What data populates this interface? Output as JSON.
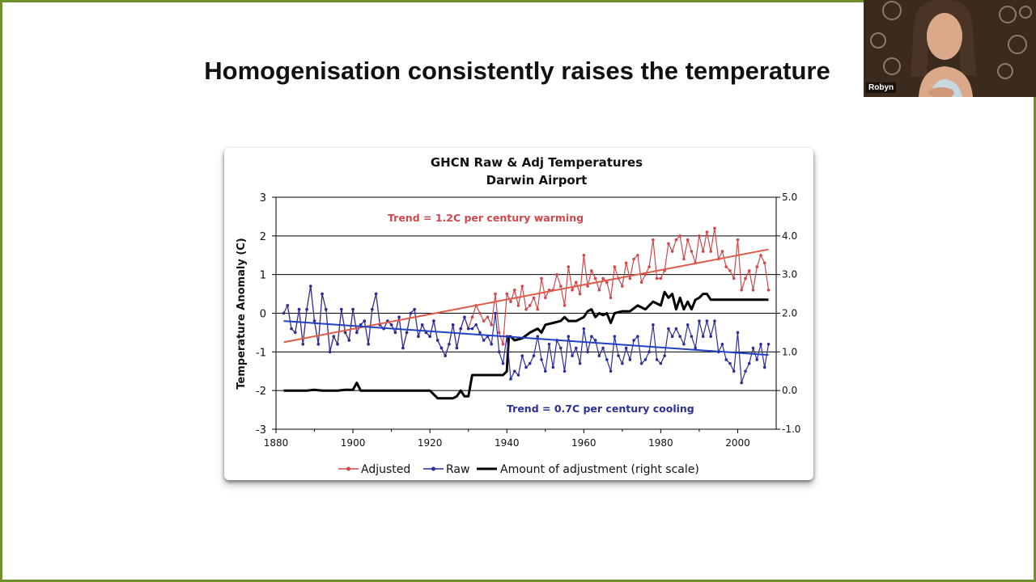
{
  "slide": {
    "title": "Homogenisation consistently raises the temperature"
  },
  "webcam": {
    "participant_name": "Robyn",
    "colors": {
      "background": "#3b2a1e",
      "person_skin": "#d9a98a",
      "hair": "#4a3426",
      "top": "#c8d8e0"
    }
  },
  "colors": {
    "frame_border": "#6f8f2a",
    "adjusted": "#d0484c",
    "raw": "#2a2f9c",
    "adjustment": "#000000",
    "trend_adjusted": "#e05a48",
    "trend_raw": "#2240c4"
  },
  "chart_data": {
    "type": "line",
    "title": "GHCN Raw & Adj Temperatures",
    "subtitle": "Darwin Airport",
    "ylabel": "Temperature Anomaly (C)",
    "xlim": [
      1880,
      2010
    ],
    "ylim": [
      -3,
      3
    ],
    "y2lim": [
      -1.0,
      5.0
    ],
    "x_ticks": [
      "1880",
      "1900",
      "1920",
      "1940",
      "1960",
      "1980",
      "2000"
    ],
    "y_ticks": [
      "3",
      "2",
      "1",
      "0",
      "-1",
      "-2",
      "-3"
    ],
    "y2_ticks": [
      "5.0",
      "4.0",
      "3.0",
      "2.0",
      "1.0",
      "0.0",
      "-1.0"
    ],
    "grid": "horizontal",
    "legend_position": "bottom",
    "legend": [
      "Adjusted",
      "Raw",
      "Amount of adjustment (right scale)"
    ],
    "annotations": {
      "warming": "Trend = 1.2C per century warming",
      "cooling": "Trend = 0.7C per century cooling"
    },
    "trends": [
      {
        "series": "Adjusted",
        "x": [
          1882,
          2008
        ],
        "y": [
          -0.75,
          1.65
        ]
      },
      {
        "series": "Raw",
        "x": [
          1882,
          2008
        ],
        "y": [
          -0.2,
          -1.08
        ]
      }
    ],
    "adjusted": {
      "name": "Adjusted",
      "x": [
        1882,
        1883,
        1884,
        1885,
        1886,
        1887,
        1888,
        1889,
        1890,
        1891,
        1892,
        1893,
        1894,
        1895,
        1896,
        1897,
        1898,
        1899,
        1900,
        1901,
        1902,
        1903,
        1904,
        1905,
        1906,
        1907,
        1908,
        1909,
        1910,
        1911,
        1912,
        1913,
        1914,
        1915,
        1916,
        1917,
        1918,
        1919,
        1920,
        1921,
        1922,
        1923,
        1924,
        1925,
        1926,
        1927,
        1928,
        1929,
        1930,
        1931,
        1932,
        1933,
        1934,
        1935,
        1936,
        1937,
        1938,
        1939,
        1940,
        1941,
        1942,
        1943,
        1944,
        1945,
        1946,
        1947,
        1948,
        1949,
        1950,
        1951,
        1952,
        1953,
        1954,
        1955,
        1956,
        1957,
        1958,
        1959,
        1960,
        1961,
        1962,
        1963,
        1964,
        1965,
        1966,
        1967,
        1968,
        1969,
        1970,
        1971,
        1972,
        1973,
        1974,
        1975,
        1976,
        1977,
        1978,
        1979,
        1980,
        1981,
        1982,
        1983,
        1984,
        1985,
        1986,
        1987,
        1988,
        1989,
        1990,
        1991,
        1992,
        1993,
        1994,
        1995,
        1996,
        1997,
        1998,
        1999,
        2000,
        2001,
        2002,
        2003,
        2004,
        2005,
        2006,
        2007,
        2008
      ],
      "y": [
        0.0,
        0.2,
        -0.4,
        -0.5,
        0.1,
        -0.8,
        0.1,
        0.7,
        -0.2,
        -0.8,
        0.5,
        0.1,
        -1.0,
        -0.6,
        -0.8,
        0.1,
        -0.5,
        -0.7,
        0.1,
        -0.5,
        -0.3,
        -0.2,
        -0.8,
        0.1,
        0.5,
        -0.3,
        -0.4,
        -0.2,
        -0.3,
        -0.5,
        -0.1,
        -0.9,
        -0.5,
        0.0,
        0.1,
        -0.6,
        -0.3,
        -0.5,
        -0.6,
        -0.2,
        -0.7,
        -0.9,
        -1.1,
        -0.8,
        -0.3,
        -0.9,
        -0.4,
        -0.1,
        -0.4,
        -0.1,
        0.2,
        0.0,
        -0.2,
        -0.1,
        -0.3,
        0.5,
        -0.5,
        -0.8,
        0.5,
        0.3,
        0.6,
        0.2,
        0.7,
        0.1,
        0.2,
        0.4,
        0.1,
        0.9,
        0.4,
        0.6,
        0.6,
        1.0,
        0.7,
        0.2,
        1.2,
        0.6,
        0.8,
        0.5,
        1.5,
        0.7,
        1.1,
        0.9,
        0.6,
        0.9,
        0.8,
        0.4,
        1.2,
        0.9,
        0.7,
        1.3,
        0.9,
        1.4,
        1.5,
        0.8,
        1.0,
        1.2,
        1.9,
        0.9,
        0.9,
        1.1,
        1.8,
        1.6,
        1.9,
        2.0,
        1.4,
        1.9,
        1.6,
        1.3,
        2.0,
        1.6,
        2.1,
        1.6,
        2.2,
        1.4,
        1.6,
        1.2,
        1.1,
        0.9,
        1.9,
        0.6,
        0.9,
        1.1,
        0.6,
        1.2,
        1.5,
        1.3,
        0.6
      ]
    },
    "raw": {
      "name": "Raw",
      "x": [
        1882,
        1883,
        1884,
        1885,
        1886,
        1887,
        1888,
        1889,
        1890,
        1891,
        1892,
        1893,
        1894,
        1895,
        1896,
        1897,
        1898,
        1899,
        1900,
        1901,
        1902,
        1903,
        1904,
        1905,
        1906,
        1907,
        1908,
        1909,
        1910,
        1911,
        1912,
        1913,
        1914,
        1915,
        1916,
        1917,
        1918,
        1919,
        1920,
        1921,
        1922,
        1923,
        1924,
        1925,
        1926,
        1927,
        1928,
        1929,
        1930,
        1931,
        1932,
        1933,
        1934,
        1935,
        1936,
        1937,
        1938,
        1939,
        1940,
        1941,
        1942,
        1943,
        1944,
        1945,
        1946,
        1947,
        1948,
        1949,
        1950,
        1951,
        1952,
        1953,
        1954,
        1955,
        1956,
        1957,
        1958,
        1959,
        1960,
        1961,
        1962,
        1963,
        1964,
        1965,
        1966,
        1967,
        1968,
        1969,
        1970,
        1971,
        1972,
        1973,
        1974,
        1975,
        1976,
        1977,
        1978,
        1979,
        1980,
        1981,
        1982,
        1983,
        1984,
        1985,
        1986,
        1987,
        1988,
        1989,
        1990,
        1991,
        1992,
        1993,
        1994,
        1995,
        1996,
        1997,
        1998,
        1999,
        2000,
        2001,
        2002,
        2003,
        2004,
        2005,
        2006,
        2007,
        2008
      ],
      "y": [
        0.0,
        0.2,
        -0.4,
        -0.5,
        0.1,
        -0.8,
        0.1,
        0.7,
        -0.2,
        -0.8,
        0.5,
        0.1,
        -1.0,
        -0.6,
        -0.8,
        0.1,
        -0.5,
        -0.7,
        0.1,
        -0.5,
        -0.3,
        -0.2,
        -0.8,
        0.1,
        0.5,
        -0.3,
        -0.4,
        -0.2,
        -0.3,
        -0.5,
        -0.1,
        -0.9,
        -0.5,
        0.0,
        0.1,
        -0.6,
        -0.3,
        -0.5,
        -0.6,
        -0.2,
        -0.7,
        -0.9,
        -1.1,
        -0.8,
        -0.3,
        -0.9,
        -0.4,
        -0.1,
        -0.4,
        -0.4,
        -0.3,
        -0.5,
        -0.7,
        -0.6,
        -0.8,
        0.0,
        -1.0,
        -1.3,
        -0.6,
        -1.7,
        -1.5,
        -1.6,
        -1.1,
        -1.4,
        -1.3,
        -1.1,
        -0.6,
        -1.2,
        -1.5,
        -0.8,
        -1.4,
        -0.7,
        -0.9,
        -1.5,
        -0.6,
        -1.1,
        -0.9,
        -1.3,
        -0.4,
        -1.0,
        -0.6,
        -0.7,
        -1.1,
        -0.9,
        -1.2,
        -1.5,
        -0.6,
        -1.1,
        -1.3,
        -0.9,
        -1.2,
        -0.7,
        -0.6,
        -1.3,
        -1.2,
        -1.0,
        -0.3,
        -1.2,
        -1.3,
        -1.1,
        -0.4,
        -0.6,
        -0.4,
        -0.6,
        -0.8,
        -0.3,
        -0.6,
        -0.9,
        -0.2,
        -0.6,
        -0.2,
        -0.6,
        -0.2,
        -1.0,
        -0.8,
        -1.2,
        -1.3,
        -1.5,
        -0.5,
        -1.8,
        -1.5,
        -1.3,
        -0.9,
        -1.2,
        -0.8,
        -1.4,
        -0.8
      ]
    },
    "adjustment": {
      "name": "Amount of adjustment (right scale)",
      "x": [
        1882,
        1884,
        1886,
        1888,
        1890,
        1892,
        1894,
        1896,
        1898,
        1900,
        1901,
        1902,
        1904,
        1906,
        1908,
        1910,
        1912,
        1914,
        1916,
        1918,
        1920,
        1922,
        1924,
        1926,
        1927,
        1928,
        1929,
        1930,
        1931,
        1932,
        1933,
        1936,
        1939,
        1940,
        1940.5,
        1941,
        1942,
        1944,
        1946,
        1948,
        1949,
        1950,
        1952,
        1954,
        1955,
        1956,
        1958,
        1960,
        1961,
        1962,
        1963,
        1964,
        1965,
        1966,
        1967,
        1968,
        1970,
        1972,
        1974,
        1976,
        1977,
        1978,
        1979,
        1980,
        1981,
        1982,
        1983,
        1984,
        1985,
        1986,
        1987,
        1988,
        1989,
        1990,
        1991,
        1992,
        1993,
        1994,
        1995,
        1996,
        2000,
        2004,
        2008
      ],
      "y": [
        0.0,
        0.0,
        0.0,
        0.0,
        0.02,
        0.0,
        0.0,
        0.0,
        0.02,
        0.02,
        0.2,
        0.0,
        0.0,
        0.0,
        0.0,
        0.0,
        0.0,
        0.0,
        0.0,
        0.0,
        0.0,
        -0.2,
        -0.2,
        -0.2,
        -0.15,
        0.0,
        -0.15,
        -0.15,
        0.4,
        0.4,
        0.4,
        0.4,
        0.4,
        0.5,
        1.4,
        1.4,
        1.3,
        1.35,
        1.5,
        1.6,
        1.5,
        1.7,
        1.75,
        1.8,
        1.9,
        1.8,
        1.8,
        1.9,
        2.05,
        2.1,
        1.9,
        2.0,
        1.95,
        2.0,
        1.75,
        2.0,
        2.05,
        2.05,
        2.2,
        2.1,
        2.2,
        2.3,
        2.25,
        2.2,
        2.55,
        2.4,
        2.5,
        2.1,
        2.4,
        2.1,
        2.3,
        2.1,
        2.35,
        2.4,
        2.5,
        2.5,
        2.35,
        2.35,
        2.35,
        2.35,
        2.35,
        2.35,
        2.35
      ]
    }
  }
}
